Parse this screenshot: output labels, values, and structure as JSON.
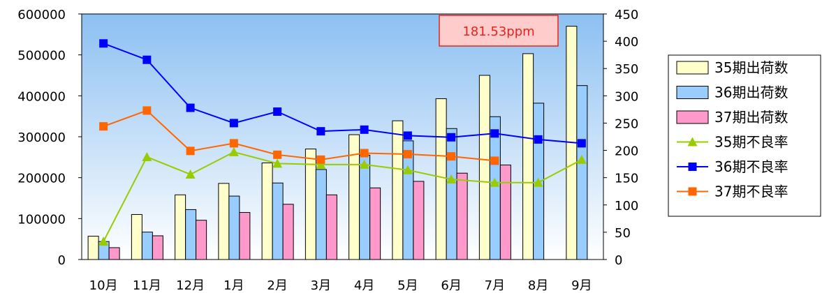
{
  "chart_data": {
    "type": "bar",
    "title": "",
    "categories": [
      "10月",
      "11月",
      "12月",
      "1月",
      "2月",
      "3月",
      "4月",
      "5月",
      "6月",
      "7月",
      "8月",
      "9月"
    ],
    "bar_series": [
      {
        "name": "35期出荷数",
        "color": "#ffffcc",
        "values": [
          57000,
          110000,
          158000,
          186000,
          236000,
          270000,
          305000,
          339000,
          393000,
          450000,
          503000,
          570000
        ]
      },
      {
        "name": "36期出荷数",
        "color": "#99ccff",
        "values": [
          44000,
          67000,
          122000,
          155000,
          187000,
          220000,
          255000,
          290000,
          320000,
          349000,
          382000,
          425000
        ]
      },
      {
        "name": "37期出荷数",
        "color": "#ff99cc",
        "values": [
          29000,
          58000,
          96000,
          115000,
          135000,
          158000,
          175000,
          191000,
          211000,
          231000,
          null,
          null
        ]
      }
    ],
    "line_series": [
      {
        "name": "35期不良率",
        "color": "#99cc00",
        "marker": "triangle",
        "values": [
          33,
          188,
          156,
          197,
          176,
          174,
          174,
          164,
          147,
          141,
          141,
          183
        ]
      },
      {
        "name": "36期不良率",
        "color": "#0000ff",
        "marker": "square",
        "values": [
          396,
          366,
          278,
          250,
          271,
          235,
          238,
          227,
          224,
          231,
          220,
          213
        ]
      },
      {
        "name": "37期不良率",
        "color": "#ff6600",
        "marker": "square",
        "values": [
          244,
          273,
          199,
          213,
          192,
          183,
          195,
          193,
          189,
          181,
          null,
          null
        ]
      }
    ],
    "y_left": {
      "min": 0,
      "max": 600000,
      "ticks": [
        "0",
        "100000",
        "200000",
        "300000",
        "400000",
        "500000",
        "600000"
      ]
    },
    "y_right": {
      "min": 0,
      "max": 450,
      "ticks": [
        "0",
        "50",
        "100",
        "150",
        "200",
        "250",
        "300",
        "350",
        "400",
        "450"
      ]
    },
    "annotation": "181.53ppm",
    "legend_position": "right",
    "grid": false,
    "plot_background": "gradient sky blue to white"
  }
}
